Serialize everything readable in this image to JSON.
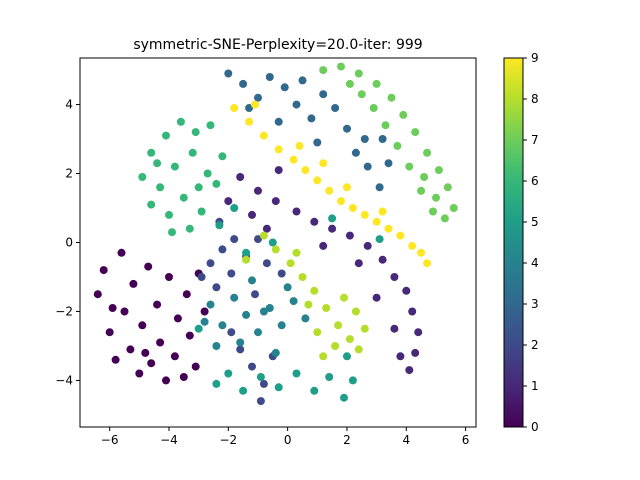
{
  "chart_data": {
    "type": "scatter",
    "title": "symmetric-SNE-Perplexity=20.0-iter: 999",
    "xlabel": "",
    "ylabel": "",
    "xlim": [
      -7.0,
      6.35
    ],
    "ylim": [
      -5.35,
      5.35
    ],
    "xticks": [
      -6,
      -4,
      -2,
      0,
      2,
      4,
      6
    ],
    "yticks": [
      -4,
      -2,
      0,
      2,
      4
    ],
    "grid": false,
    "colormap": "viridis",
    "colorbar": {
      "range": [
        0,
        9
      ],
      "ticks": [
        0,
        1,
        2,
        3,
        4,
        5,
        6,
        7,
        8,
        9
      ]
    },
    "clusters": [
      {
        "label": 0,
        "color": "#440154",
        "points": [
          [
            -6.4,
            -1.5
          ],
          [
            -6.2,
            -0.8
          ],
          [
            -6.0,
            -2.6
          ],
          [
            -5.8,
            -3.4
          ],
          [
            -5.6,
            -0.3
          ],
          [
            -5.5,
            -2.0
          ],
          [
            -5.3,
            -3.1
          ],
          [
            -5.2,
            -1.2
          ],
          [
            -5.0,
            -3.8
          ],
          [
            -4.9,
            -2.4
          ],
          [
            -4.7,
            -0.7
          ],
          [
            -4.6,
            -3.5
          ],
          [
            -4.4,
            -1.8
          ],
          [
            -4.3,
            -2.9
          ],
          [
            -4.1,
            -4.0
          ],
          [
            -4.0,
            -1.0
          ],
          [
            -3.8,
            -3.3
          ],
          [
            -3.7,
            -2.2
          ],
          [
            -3.5,
            -3.9
          ],
          [
            -3.4,
            -1.5
          ],
          [
            -3.3,
            -2.7
          ],
          [
            -3.1,
            -3.6
          ],
          [
            -3.0,
            -0.9
          ],
          [
            -2.8,
            -2.0
          ],
          [
            -5.9,
            -1.9
          ],
          [
            -4.8,
            -3.2
          ]
        ]
      },
      {
        "label": 1,
        "color": "#482878",
        "points": [
          [
            -1.6,
            1.9
          ],
          [
            -1.0,
            1.5
          ],
          [
            -0.4,
            1.2
          ],
          [
            0.3,
            0.9
          ],
          [
            0.9,
            0.6
          ],
          [
            1.5,
            0.4
          ],
          [
            2.1,
            0.2
          ],
          [
            2.7,
            -0.1
          ],
          [
            3.2,
            -0.5
          ],
          [
            3.6,
            -1.0
          ],
          [
            4.0,
            -1.4
          ],
          [
            4.2,
            -2.0
          ],
          [
            4.4,
            -2.6
          ],
          [
            4.3,
            -3.2
          ],
          [
            4.1,
            -3.7
          ],
          [
            3.8,
            -3.3
          ],
          [
            3.6,
            -2.5
          ],
          [
            -1.2,
            0.8
          ],
          [
            -0.7,
            0.4
          ],
          [
            -2.0,
            1.2
          ],
          [
            2.4,
            -0.6
          ],
          [
            3.0,
            -1.6
          ],
          [
            1.2,
            -0.1
          ],
          [
            -0.3,
            2.1
          ]
        ]
      },
      {
        "label": 2,
        "color": "#3e4a89",
        "points": [
          [
            -2.6,
            -0.6
          ],
          [
            -2.2,
            -0.2
          ],
          [
            -1.8,
            0.1
          ],
          [
            -1.4,
            -0.4
          ],
          [
            -2.9,
            -1.0
          ],
          [
            -2.4,
            -1.3
          ],
          [
            -1.9,
            -0.9
          ],
          [
            -1.1,
            -1.5
          ],
          [
            -0.7,
            -0.6
          ],
          [
            -1.6,
            -3.1
          ],
          [
            -1.2,
            -3.6
          ],
          [
            -0.8,
            -4.1
          ],
          [
            -0.5,
            -3.3
          ],
          [
            -1.9,
            -2.6
          ],
          [
            -0.9,
            -4.6
          ],
          [
            -2.3,
            0.6
          ],
          [
            -1.0,
            0.1
          ],
          [
            -0.2,
            -0.9
          ]
        ]
      },
      {
        "label": 3,
        "color": "#31688e",
        "points": [
          [
            -2.0,
            4.9
          ],
          [
            -1.5,
            4.6
          ],
          [
            -1.0,
            4.2
          ],
          [
            -0.6,
            4.8
          ],
          [
            -0.1,
            4.5
          ],
          [
            0.3,
            4.0
          ],
          [
            0.8,
            3.6
          ],
          [
            1.2,
            4.3
          ],
          [
            1.6,
            3.9
          ],
          [
            2.0,
            3.3
          ],
          [
            2.3,
            2.6
          ],
          [
            2.7,
            2.2
          ],
          [
            3.1,
            1.6
          ],
          [
            3.4,
            2.3
          ],
          [
            3.2,
            3.0
          ],
          [
            -0.3,
            3.5
          ],
          [
            0.5,
            4.7
          ],
          [
            1.0,
            2.9
          ],
          [
            -1.3,
            3.9
          ],
          [
            2.6,
            3.0
          ]
        ]
      },
      {
        "label": 4,
        "color": "#26828e",
        "points": [
          [
            -2.6,
            -1.8
          ],
          [
            -2.2,
            -2.4
          ],
          [
            -1.8,
            -1.6
          ],
          [
            -1.4,
            -2.1
          ],
          [
            -1.0,
            -2.6
          ],
          [
            -0.6,
            -1.9
          ],
          [
            -0.2,
            -2.4
          ],
          [
            0.2,
            -1.7
          ],
          [
            -2.4,
            -3.0
          ],
          [
            -1.6,
            -2.9
          ],
          [
            -0.4,
            -3.2
          ],
          [
            0.6,
            -2.2
          ],
          [
            -1.2,
            -1.1
          ],
          [
            -0.8,
            -2.0
          ],
          [
            0.0,
            -1.3
          ],
          [
            -2.8,
            -2.3
          ]
        ]
      },
      {
        "label": 5,
        "color": "#1f9e89",
        "points": [
          [
            -2.4,
            -4.1
          ],
          [
            -2.0,
            -3.8
          ],
          [
            -1.5,
            -4.3
          ],
          [
            -0.9,
            -3.9
          ],
          [
            -0.3,
            -4.2
          ],
          [
            0.3,
            -3.8
          ],
          [
            0.9,
            -4.3
          ],
          [
            1.4,
            -3.9
          ],
          [
            1.9,
            -4.5
          ],
          [
            2.2,
            -4.0
          ],
          [
            2.0,
            -3.3
          ],
          [
            -1.8,
            1.0
          ],
          [
            -2.3,
            0.5
          ],
          [
            -3.0,
            -2.5
          ],
          [
            -0.5,
            0.0
          ],
          [
            1.5,
            0.7
          ],
          [
            3.1,
            0.1
          ],
          [
            -1.4,
            -0.3
          ]
        ]
      },
      {
        "label": 6,
        "color": "#35b779",
        "points": [
          [
            -4.6,
            2.6
          ],
          [
            -4.1,
            3.1
          ],
          [
            -3.6,
            3.5
          ],
          [
            -3.1,
            3.2
          ],
          [
            -2.6,
            3.4
          ],
          [
            -4.9,
            1.9
          ],
          [
            -4.3,
            1.6
          ],
          [
            -3.8,
            2.2
          ],
          [
            -3.2,
            2.6
          ],
          [
            -2.7,
            2.0
          ],
          [
            -4.6,
            1.1
          ],
          [
            -4.0,
            0.8
          ],
          [
            -3.5,
            1.3
          ],
          [
            -2.9,
            0.9
          ],
          [
            -2.4,
            1.7
          ],
          [
            -3.9,
            0.3
          ],
          [
            -3.3,
            0.4
          ],
          [
            -2.2,
            2.5
          ],
          [
            -4.4,
            2.3
          ],
          [
            -3.0,
            1.6
          ]
        ]
      },
      {
        "label": 7,
        "color": "#6ccd5a",
        "points": [
          [
            1.2,
            5.0
          ],
          [
            1.8,
            5.1
          ],
          [
            2.4,
            4.9
          ],
          [
            3.0,
            4.6
          ],
          [
            3.5,
            4.2
          ],
          [
            3.9,
            3.7
          ],
          [
            4.3,
            3.2
          ],
          [
            4.7,
            2.6
          ],
          [
            5.1,
            2.1
          ],
          [
            5.4,
            1.6
          ],
          [
            5.6,
            1.0
          ],
          [
            5.3,
            0.7
          ],
          [
            4.9,
            0.9
          ],
          [
            4.5,
            1.5
          ],
          [
            4.1,
            2.2
          ],
          [
            3.7,
            2.8
          ],
          [
            3.3,
            3.4
          ],
          [
            2.9,
            3.9
          ],
          [
            2.5,
            4.3
          ],
          [
            2.1,
            4.6
          ],
          [
            4.6,
            1.9
          ],
          [
            5.0,
            1.3
          ]
        ]
      },
      {
        "label": 8,
        "color": "#b5de2b",
        "points": [
          [
            -0.8,
            0.2
          ],
          [
            -0.4,
            -0.2
          ],
          [
            0.1,
            -0.6
          ],
          [
            0.5,
            -1.0
          ],
          [
            0.9,
            -1.4
          ],
          [
            1.3,
            -1.9
          ],
          [
            1.7,
            -2.4
          ],
          [
            2.1,
            -2.8
          ],
          [
            2.4,
            -3.1
          ],
          [
            1.6,
            -3.0
          ],
          [
            1.0,
            -2.6
          ],
          [
            0.7,
            -1.8
          ],
          [
            1.9,
            -1.6
          ],
          [
            2.3,
            -2.0
          ],
          [
            0.3,
            -0.3
          ],
          [
            -1.4,
            -0.5
          ],
          [
            1.2,
            -3.3
          ],
          [
            2.6,
            -2.5
          ]
        ]
      },
      {
        "label": 9,
        "color": "#fde725",
        "points": [
          [
            -1.8,
            3.9
          ],
          [
            -1.3,
            3.5
          ],
          [
            -0.8,
            3.1
          ],
          [
            -0.3,
            2.7
          ],
          [
            0.2,
            2.4
          ],
          [
            0.6,
            2.1
          ],
          [
            1.0,
            1.8
          ],
          [
            1.4,
            1.5
          ],
          [
            1.8,
            1.2
          ],
          [
            2.2,
            1.0
          ],
          [
            2.6,
            0.8
          ],
          [
            3.0,
            0.6
          ],
          [
            3.4,
            0.4
          ],
          [
            3.8,
            0.2
          ],
          [
            4.2,
            -0.1
          ],
          [
            4.5,
            -0.3
          ],
          [
            4.7,
            -0.6
          ],
          [
            0.4,
            2.8
          ],
          [
            1.2,
            2.3
          ],
          [
            2.0,
            1.6
          ],
          [
            -1.1,
            4.0
          ],
          [
            3.2,
            0.9
          ]
        ]
      }
    ]
  }
}
